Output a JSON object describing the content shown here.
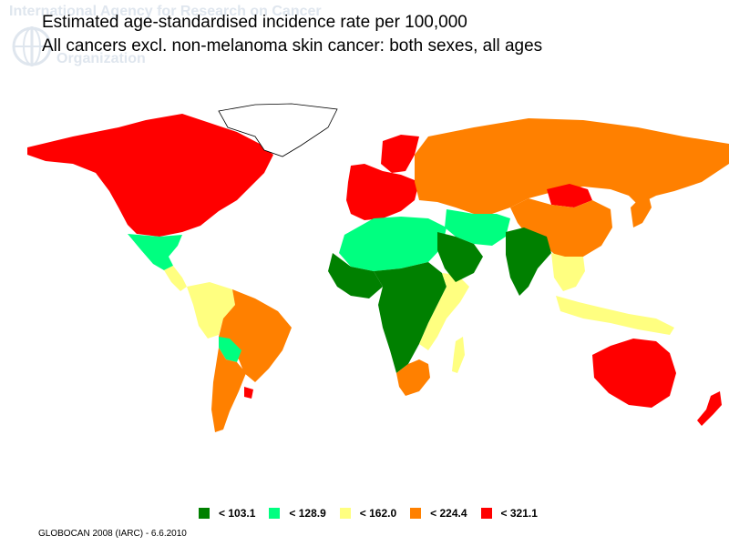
{
  "watermark": {
    "line1": "International Agency for Research on Cancer",
    "line2": "Organization",
    "emblem_icon": "who-emblem-icon"
  },
  "title": {
    "line1": "Estimated age-standardised incidence rate per 100,000",
    "line2": "All cancers excl. non-melanoma skin cancer: both sexes, all ages"
  },
  "legend": [
    {
      "label": "< 103.1",
      "color": "#008000"
    },
    {
      "label": "< 128.9",
      "color": "#00ff80"
    },
    {
      "label": "< 162.0",
      "color": "#ffff80"
    },
    {
      "label": "< 224.4",
      "color": "#ff8000"
    },
    {
      "label": "< 321.1",
      "color": "#ff0000"
    }
  ],
  "map": {
    "no_data_color": "#ffffff",
    "regions": [
      {
        "name": "north-america",
        "class": 4
      },
      {
        "name": "greenland",
        "class": -1
      },
      {
        "name": "mexico",
        "class": 1
      },
      {
        "name": "central-america",
        "class": 2
      },
      {
        "name": "south-america-north",
        "class": 2
      },
      {
        "name": "brazil",
        "class": 3
      },
      {
        "name": "bolivia",
        "class": 1
      },
      {
        "name": "argentina",
        "class": 3
      },
      {
        "name": "uruguay",
        "class": 4
      },
      {
        "name": "western-europe",
        "class": 4
      },
      {
        "name": "scandinavia",
        "class": 4
      },
      {
        "name": "russia-central-asia",
        "class": 3
      },
      {
        "name": "mongolia",
        "class": 4
      },
      {
        "name": "china",
        "class": 3
      },
      {
        "name": "japan",
        "class": 3
      },
      {
        "name": "north-africa",
        "class": 1
      },
      {
        "name": "west-africa",
        "class": 0
      },
      {
        "name": "central-africa",
        "class": 0
      },
      {
        "name": "east-africa",
        "class": 2
      },
      {
        "name": "southern-africa",
        "class": 3
      },
      {
        "name": "madagascar",
        "class": 2
      },
      {
        "name": "middle-east",
        "class": 1
      },
      {
        "name": "arabia",
        "class": 0
      },
      {
        "name": "india",
        "class": 0
      },
      {
        "name": "southeast-asia",
        "class": 2
      },
      {
        "name": "indonesia",
        "class": 2
      },
      {
        "name": "australia",
        "class": 4
      },
      {
        "name": "new-zealand",
        "class": 4
      }
    ]
  },
  "footer": "GLOBOCAN 2008 (IARC) - 6.6.2010"
}
